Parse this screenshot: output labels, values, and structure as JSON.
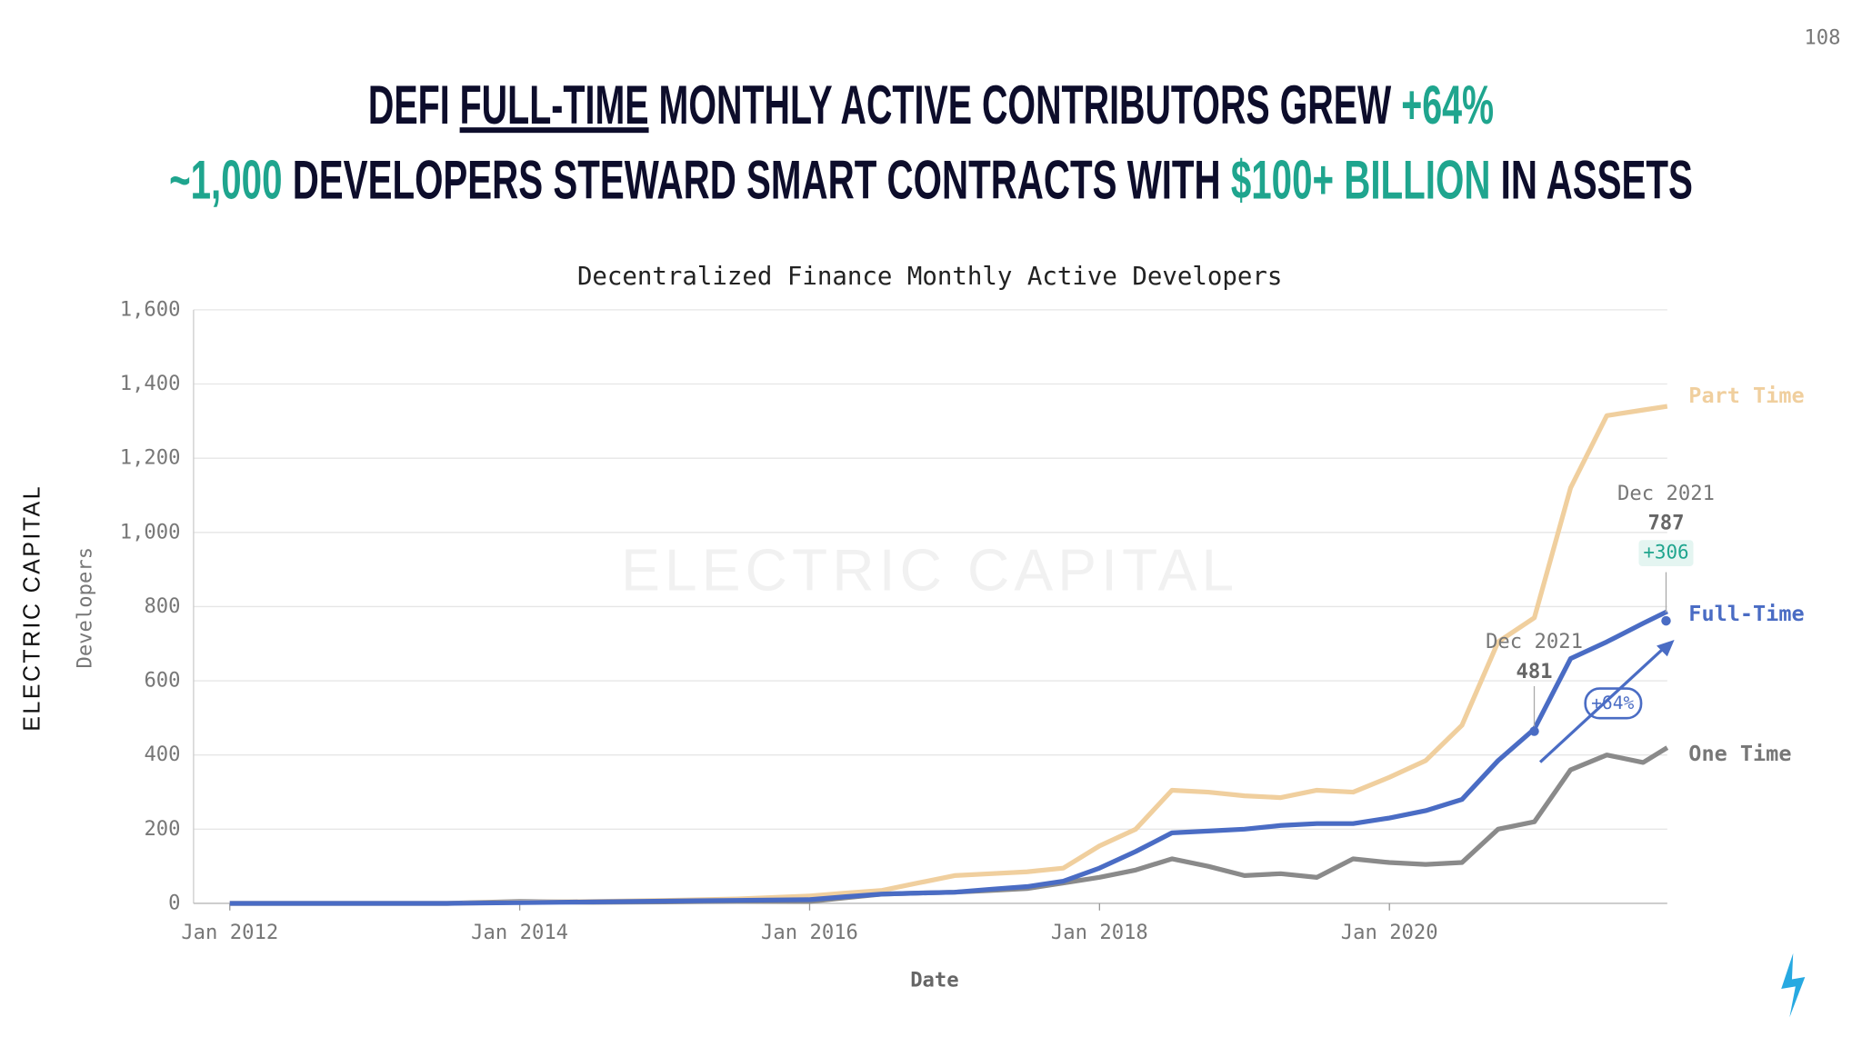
{
  "page_number": "108",
  "headline": {
    "line1": [
      "DEFI ",
      "FULL-TIME",
      " MONTHLY ACTIVE CONTRIBUTORS GREW ",
      "+64%"
    ],
    "line2": [
      "~1,000",
      " DEVELOPERS STEWARD SMART CONTRACTS WITH ",
      "$100+ BILLION",
      " IN ASSETS"
    ]
  },
  "brand": "ELECTRIC CAPITAL",
  "chart_data": {
    "type": "line",
    "title": "Decentralized Finance Monthly Active Developers",
    "x_label": "Date",
    "y_label": "Developers",
    "watermark": "ELECTRIC CAPITAL",
    "x": [
      "2012-01",
      "2012-07",
      "2013-01",
      "2013-07",
      "2014-01",
      "2014-07",
      "2015-01",
      "2015-07",
      "2016-01",
      "2016-04",
      "2016-07",
      "2016-10",
      "2017-01",
      "2017-04",
      "2017-07",
      "2017-10",
      "2018-01",
      "2018-04",
      "2018-07",
      "2018-10",
      "2019-01",
      "2019-04",
      "2019-07",
      "2019-10",
      "2020-01",
      "2020-04",
      "2020-07",
      "2020-10",
      "2021-01",
      "2021-04",
      "2021-07",
      "2021-10",
      "2021-12"
    ],
    "series": [
      {
        "name": "Part Time",
        "color": "#f0cf9e",
        "values": [
          0,
          0,
          0,
          0,
          3,
          5,
          8,
          12,
          20,
          28,
          35,
          55,
          75,
          80,
          85,
          95,
          155,
          200,
          305,
          300,
          290,
          285,
          305,
          300,
          340,
          385,
          480,
          705,
          770,
          1120,
          1315,
          1330,
          1340
        ]
      },
      {
        "name": "Full-Time",
        "color": "#4a6cc4",
        "values": [
          0,
          0,
          0,
          0,
          2,
          4,
          6,
          8,
          10,
          18,
          25,
          28,
          30,
          38,
          45,
          60,
          95,
          140,
          190,
          195,
          200,
          210,
          215,
          215,
          230,
          250,
          280,
          385,
          470,
          660,
          705,
          755,
          787
        ]
      },
      {
        "name": "One Time",
        "color": "#8a8a8a",
        "values": [
          0,
          0,
          0,
          0,
          5,
          3,
          4,
          6,
          5,
          15,
          25,
          28,
          30,
          35,
          40,
          55,
          70,
          90,
          120,
          100,
          75,
          80,
          70,
          120,
          110,
          105,
          110,
          200,
          220,
          360,
          400,
          380,
          420
        ]
      }
    ],
    "annotations": [
      "Dec 2021",
      "787",
      "+306",
      "Dec 2021",
      "481",
      "+64%"
    ],
    "xlim": [
      "2011-10",
      "2021-12"
    ],
    "xticks": [
      {
        "value": "2012-01",
        "label": "Jan 2012"
      },
      {
        "value": "2014-01",
        "label": "Jan 2014"
      },
      {
        "value": "2016-01",
        "label": "Jan 2016"
      },
      {
        "value": "2018-01",
        "label": "Jan 2018"
      },
      {
        "value": "2020-01",
        "label": "Jan 2020"
      }
    ],
    "ylim": [
      0,
      1600
    ],
    "yticks": [
      0,
      200,
      400,
      600,
      800,
      {
        "value": 1000,
        "label": "1,000"
      },
      {
        "value": 1200,
        "label": "1,200"
      },
      {
        "value": 1400,
        "label": "1,400"
      },
      {
        "value": 1600,
        "label": "1,600"
      }
    ],
    "grid": true
  }
}
